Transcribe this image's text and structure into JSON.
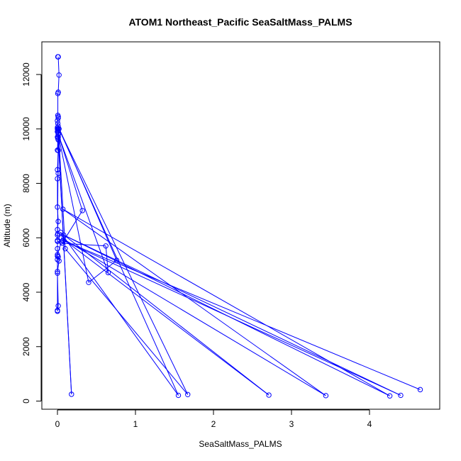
{
  "chart_data": {
    "type": "line",
    "title": "ATOM1 Northeast_Pacific SeaSaltMass_PALMS",
    "xlabel": "SeaSaltMass_PALMS",
    "ylabel": "Altitude (m)",
    "xlim": [
      -0.2,
      4.9
    ],
    "ylim": [
      -300,
      13200
    ],
    "x_ticks": [
      0,
      1,
      2,
      3,
      4
    ],
    "y_ticks": [
      0,
      2000,
      4000,
      6000,
      8000,
      10000,
      12000
    ],
    "grid": false,
    "line_color": "#0000ff",
    "marker": "open-circle",
    "series": [
      {
        "x": [
          0.005,
          0.01,
          0.02,
          0.01,
          0.005,
          0.005,
          0.01,
          0.01,
          0.0,
          0.005,
          0.0,
          0.01,
          0.005,
          0.0,
          0.01,
          0.01,
          0.0,
          0.005,
          0.0,
          0.01,
          0.0,
          0.01,
          0.0,
          0.0,
          0.01,
          0.0,
          0.005,
          0.0,
          0.0,
          0.0,
          0.05,
          0.0,
          0.0,
          0.01,
          0.02,
          0.0,
          0.0,
          0.0,
          0.01,
          0.0,
          0.0,
          0.0,
          0.01,
          0.18,
          0.01,
          0.0,
          0.0,
          0.32,
          0.06,
          0.62,
          0.65,
          0.01,
          0.4,
          0.76,
          0.01,
          0.1,
          1.67,
          0.02,
          1.55,
          0.04,
          2.71,
          0.05,
          3.44,
          0.07,
          4.26,
          0.08,
          4.4,
          0.07,
          4.65
        ],
        "y": [
          12650,
          12650,
          11980,
          11350,
          11300,
          10500,
          10450,
          10400,
          10300,
          10200,
          10050,
          10000,
          9950,
          9900,
          9850,
          9800,
          9700,
          9650,
          9220,
          9210,
          8500,
          8370,
          8170,
          7130,
          6600,
          6300,
          6150,
          6100,
          5900,
          5870,
          5850,
          5380,
          5330,
          5300,
          5150,
          4760,
          3330,
          3300,
          3500,
          4700,
          5200,
          5600,
          9700,
          250,
          9600,
          10000,
          9900,
          7000,
          5800,
          5700,
          4720,
          9800,
          4360,
          5170,
          10100,
          5600,
          240,
          10000,
          210,
          6200,
          220,
          6000,
          200,
          7050,
          190,
          6100,
          210,
          5900,
          420
        ]
      }
    ]
  }
}
